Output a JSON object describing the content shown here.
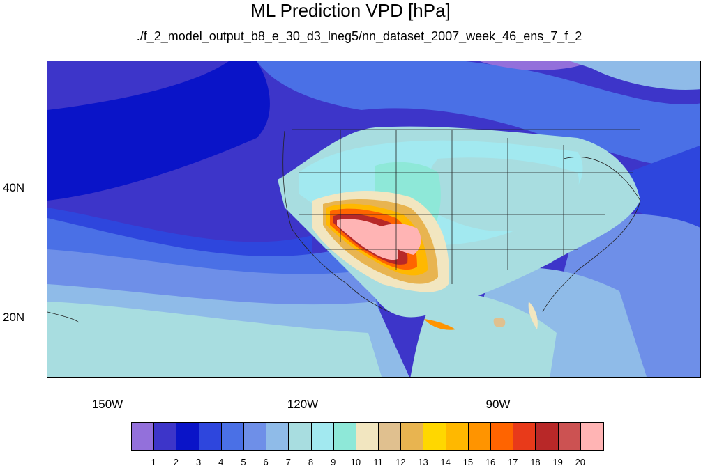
{
  "title": "ML Prediction VPD [hPa]",
  "subtitle": "./f_2_model_output_b8_e_30_d3_lneg5/nn_dataset_2007_week_46_ens_7_f_2",
  "axes": {
    "lat_labels": [
      "40N",
      "20N"
    ],
    "lon_labels": [
      "150W",
      "120W",
      "90W"
    ]
  },
  "colorbar": {
    "labels": [
      "1",
      "2",
      "3",
      "4",
      "5",
      "6",
      "7",
      "8",
      "9",
      "10",
      "11",
      "12",
      "13",
      "14",
      "15",
      "16",
      "17",
      "18",
      "19",
      "20"
    ],
    "colors": [
      "#9370db",
      "#3d35c9",
      "#0a14c8",
      "#2e46dd",
      "#4a70e6",
      "#6e8fe8",
      "#8fbbe8",
      "#a8dde0",
      "#a2e9f0",
      "#8ee8d8",
      "#f2e6c0",
      "#e0c08f",
      "#e8b450",
      "#ffd700",
      "#ffb800",
      "#ff9400",
      "#ff6400",
      "#e83a1a",
      "#b82828",
      "#cc5252",
      "#ffb4b4"
    ]
  }
}
